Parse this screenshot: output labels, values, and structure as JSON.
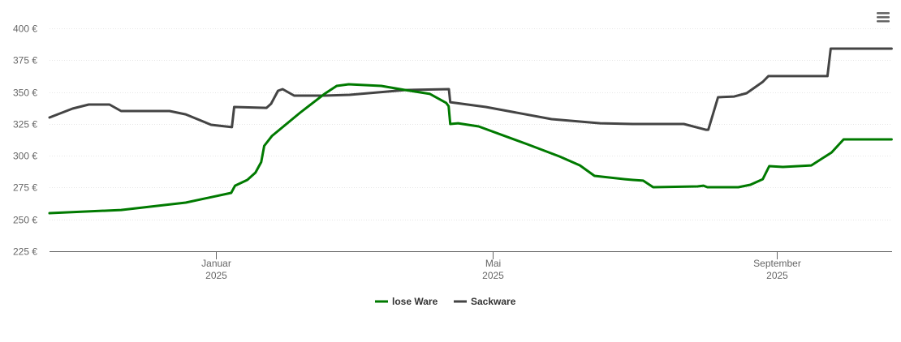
{
  "chart_data": {
    "type": "line",
    "title": "",
    "xlabel": "",
    "ylabel": "",
    "x_unit": "days since 2025-01-01",
    "xlim": [
      -72,
      293
    ],
    "ylim": [
      225,
      400
    ],
    "yticks": [
      225,
      250,
      275,
      300,
      325,
      350,
      375,
      400
    ],
    "ytick_labels": [
      "225 €",
      "250 €",
      "275 €",
      "300 €",
      "325 €",
      "350 €",
      "375 €",
      "400 €"
    ],
    "xticks": [
      {
        "x": 0,
        "line1": "Januar",
        "line2": "2025"
      },
      {
        "x": 120,
        "line1": "Mai",
        "line2": "2025"
      },
      {
        "x": 243,
        "line1": "September",
        "line2": "2025"
      }
    ],
    "grid": true,
    "legend": "bottom-center",
    "series": [
      {
        "name": "lose Ware",
        "color": "#007a00",
        "x": [
          -72,
          -41,
          -13,
          6.7,
          8.4,
          13.7,
          17.2,
          19.7,
          21,
          24.3,
          36.6,
          47.1,
          52.4,
          57.6,
          71.7,
          82.2,
          92.8,
          99.8,
          100.9,
          101.6,
          105,
          113.9,
          135,
          149,
          157.8,
          164.1,
          177.2,
          180.7,
          185.2,
          189.5,
          208.8,
          211.3,
          213,
          226.4,
          231.6,
          237,
          239.8,
          245.7,
          258,
          266.8,
          272,
          292.8
        ],
        "y": [
          254.9,
          257.4,
          263.2,
          270.8,
          276.5,
          281,
          286.7,
          295,
          307.7,
          315.4,
          333.8,
          348.5,
          354.8,
          356.1,
          354.8,
          351.6,
          348.5,
          341.5,
          338.9,
          324.9,
          325.5,
          323,
          309,
          299.4,
          292.4,
          284.2,
          281.6,
          281,
          280.4,
          275.3,
          275.9,
          276.5,
          275.3,
          275.3,
          277.2,
          281.6,
          291.8,
          291.2,
          292.4,
          302.6,
          312.8,
          312.8
        ]
      },
      {
        "name": "Sackware",
        "color": "#444444",
        "x": [
          -72,
          -62,
          -55,
          -46,
          -41,
          -20,
          -13,
          -2,
          7,
          8,
          22,
          24,
          27,
          29,
          34,
          47,
          58,
          82,
          101,
          101.6,
          117,
          145.5,
          166.6,
          180.7,
          202.8,
          212.3,
          213.4,
          217.6,
          224.6,
          230,
          237,
          239.4,
          265,
          266.4,
          292.8
        ],
        "y": [
          330,
          337,
          340.2,
          340.2,
          335.1,
          335.1,
          332.5,
          324.3,
          322.4,
          338.3,
          337.6,
          340.8,
          351,
          352.3,
          347.2,
          347.2,
          347.8,
          351.6,
          352.3,
          342,
          338.3,
          328.7,
          325.5,
          324.9,
          324.9,
          320.4,
          320.4,
          345.9,
          346.5,
          349.1,
          358,
          362.5,
          362.5,
          384.1,
          384.1
        ]
      }
    ]
  },
  "menu": {
    "icon": "hamburger-menu-icon"
  }
}
